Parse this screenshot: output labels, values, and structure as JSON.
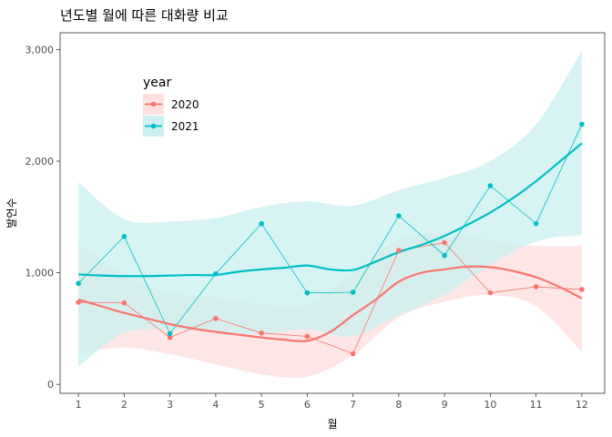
{
  "chart_data": {
    "type": "line",
    "title": "년도별 월에 따른 대화량 비교",
    "xlabel": "월",
    "ylabel": "발언수",
    "xlim": [
      0.6,
      12.5
    ],
    "ylim": [
      -80,
      3150
    ],
    "x_ticks": [
      1,
      2,
      3,
      4,
      5,
      6,
      7,
      8,
      9,
      10,
      11,
      12
    ],
    "y_ticks": [
      {
        "value": 0,
        "label": "0"
      },
      {
        "value": 1000,
        "label": "1,000"
      },
      {
        "value": 2000,
        "label": "2,000"
      },
      {
        "value": 3000,
        "label": "3,000"
      }
    ],
    "legend": {
      "title": "year",
      "position": "top-left inside"
    },
    "x": [
      1,
      2,
      3,
      4,
      5,
      6,
      7,
      8,
      9,
      10,
      11,
      12
    ],
    "series": [
      {
        "name": "2020",
        "color": "#F8766D",
        "band_color": "#FFE0E0",
        "values": [
          735,
          730,
          420,
          590,
          460,
          430,
          275,
          1200,
          1270,
          820,
          875,
          850
        ],
        "smooth": [
          {
            "x": 1,
            "y": 760
          },
          {
            "x": 1.5,
            "y": 700
          },
          {
            "x": 2,
            "y": 640
          },
          {
            "x": 2.5,
            "y": 590
          },
          {
            "x": 3,
            "y": 540
          },
          {
            "x": 3.5,
            "y": 500
          },
          {
            "x": 4,
            "y": 470
          },
          {
            "x": 4.5,
            "y": 445
          },
          {
            "x": 5,
            "y": 420
          },
          {
            "x": 5.5,
            "y": 400
          },
          {
            "x": 6,
            "y": 390
          },
          {
            "x": 6.5,
            "y": 470
          },
          {
            "x": 7,
            "y": 620
          },
          {
            "x": 7.5,
            "y": 760
          },
          {
            "x": 8,
            "y": 920
          },
          {
            "x": 8.5,
            "y": 1000
          },
          {
            "x": 9,
            "y": 1030
          },
          {
            "x": 9.5,
            "y": 1055
          },
          {
            "x": 10,
            "y": 1050
          },
          {
            "x": 10.5,
            "y": 1015
          },
          {
            "x": 11,
            "y": 960
          },
          {
            "x": 11.5,
            "y": 875
          },
          {
            "x": 12,
            "y": 770
          }
        ],
        "band_upper": [
          1250,
          980,
          820,
          780,
          720,
          720,
          1000,
          1300,
          1350,
          1290,
          1240,
          1240
        ],
        "band_lower": [
          280,
          330,
          270,
          180,
          90,
          70,
          260,
          600,
          740,
          800,
          700,
          290
        ]
      },
      {
        "name": "2021",
        "color": "#00BFC4",
        "band_color": "#CDF0F1",
        "values": [
          905,
          1325,
          455,
          990,
          1440,
          820,
          825,
          1510,
          1155,
          1780,
          1440,
          2330
        ],
        "smooth": [
          {
            "x": 1,
            "y": 985
          },
          {
            "x": 1.5,
            "y": 975
          },
          {
            "x": 2,
            "y": 970
          },
          {
            "x": 2.5,
            "y": 970
          },
          {
            "x": 3,
            "y": 975
          },
          {
            "x": 3.5,
            "y": 980
          },
          {
            "x": 4,
            "y": 980
          },
          {
            "x": 4.5,
            "y": 1010
          },
          {
            "x": 5,
            "y": 1030
          },
          {
            "x": 5.5,
            "y": 1045
          },
          {
            "x": 6,
            "y": 1065
          },
          {
            "x": 6.5,
            "y": 1030
          },
          {
            "x": 7,
            "y": 1025
          },
          {
            "x": 7.5,
            "y": 1100
          },
          {
            "x": 8,
            "y": 1185
          },
          {
            "x": 8.5,
            "y": 1250
          },
          {
            "x": 9,
            "y": 1330
          },
          {
            "x": 9.5,
            "y": 1430
          },
          {
            "x": 10,
            "y": 1540
          },
          {
            "x": 10.5,
            "y": 1670
          },
          {
            "x": 11,
            "y": 1820
          },
          {
            "x": 11.5,
            "y": 1990
          },
          {
            "x": 12,
            "y": 2160
          }
        ],
        "band_upper": [
          1810,
          1480,
          1460,
          1490,
          1590,
          1640,
          1600,
          1740,
          1850,
          2000,
          2330,
          2990
        ],
        "band_lower": [
          160,
          460,
          490,
          470,
          450,
          490,
          430,
          620,
          800,
          1070,
          1280,
          1340
        ]
      }
    ]
  }
}
